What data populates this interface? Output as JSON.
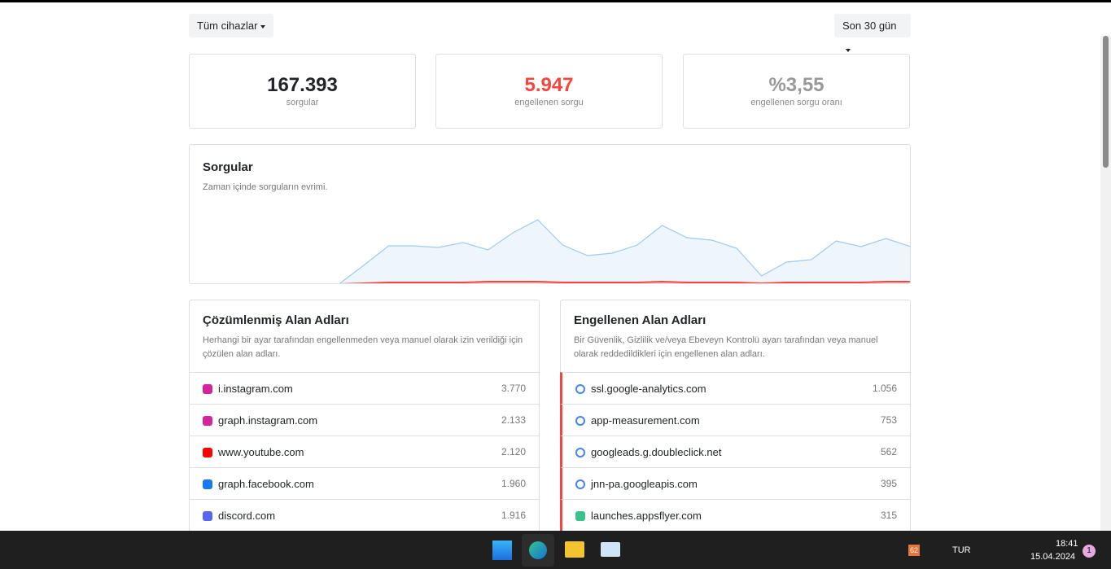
{
  "filters": {
    "devices": "Tüm cihazlar",
    "period": "Son 30 gün"
  },
  "stats": [
    {
      "value": "167.393",
      "label": "sorgular"
    },
    {
      "value": "5.947",
      "label": "engellenen sorgu"
    },
    {
      "value": "%3,55",
      "label": "engellenen sorgu oranı"
    }
  ],
  "queries_chart": {
    "type": "area",
    "title": "Sorgular",
    "subtitle": "Zaman içinde sorguların evrimi.",
    "ylim": [
      0,
      100
    ],
    "series": [
      {
        "color": "#9fcbee",
        "values": [
          0,
          0,
          0,
          0,
          0,
          0,
          0,
          23,
          47,
          47,
          45,
          51,
          42,
          63,
          79,
          48,
          35,
          38,
          48,
          72,
          57,
          54,
          44,
          10,
          27,
          30,
          53,
          46,
          56,
          46
        ]
      },
      {
        "color": "#f5453d",
        "values": [
          0,
          0,
          0,
          0,
          0,
          0,
          0,
          1,
          2,
          2,
          2,
          2,
          3,
          3,
          3,
          2,
          2,
          2,
          2,
          3,
          2,
          2,
          2,
          1,
          2,
          2,
          2,
          2,
          3,
          3
        ]
      }
    ]
  },
  "resolved": {
    "title": "Çözümlenmiş Alan Adları",
    "description": "Herhangi bir ayar tarafından engellenmeden veya manuel olarak izin verildiği için çözülen alan adları.",
    "rows": [
      [
        "i.instagram.com",
        "3.770"
      ],
      [
        "graph.instagram.com",
        "2.133"
      ],
      [
        "www.youtube.com",
        "2.120"
      ],
      [
        "graph.facebook.com",
        "1.960"
      ],
      [
        "discord.com",
        "1.916"
      ]
    ]
  },
  "blocked": {
    "title": "Engellenen Alan Adları",
    "description": "Bir Güvenlik, Gizlilik ve/veya Ebeveyn Kontrolü ayarı tarafından veya manuel olarak reddedildikleri için engellenen alan adları.",
    "rows": [
      [
        "ssl.google-analytics.com",
        "1.056"
      ],
      [
        "app-measurement.com",
        "753"
      ],
      [
        "googleads.g.doubleclick.net",
        "562"
      ],
      [
        "jnn-pa.googleapis.com",
        "395"
      ],
      [
        "launches.appsflyer.com",
        "315"
      ]
    ]
  },
  "taskbar": {
    "battery": "62",
    "language": "TUR",
    "time": "18:41",
    "date": "15.04.2024",
    "notifications": "1"
  }
}
